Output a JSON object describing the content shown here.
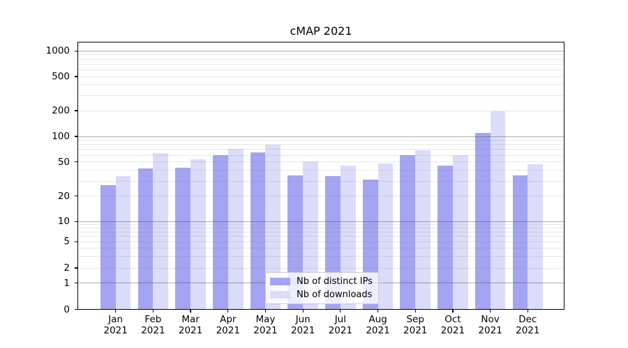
{
  "figure": {
    "background": "#ffffff"
  },
  "chart_data": {
    "type": "bar",
    "title": "cMAP 2021",
    "xlabel": "",
    "ylabel": "",
    "categories": [
      "Jan",
      "Feb",
      "Mar",
      "Apr",
      "May",
      "Jun",
      "Jul",
      "Aug",
      "Sep",
      "Oct",
      "Nov",
      "Dec"
    ],
    "x_year_line": "2021",
    "series": [
      {
        "name": "Nb of distinct IPs",
        "key": "distinct-ips",
        "color": "#a4a4f2",
        "values": [
          27,
          42,
          43,
          60,
          65,
          35,
          34,
          31,
          60,
          45,
          110,
          35
        ]
      },
      {
        "name": "Nb of downloads",
        "key": "downloads",
        "color": "#dbdbfa",
        "values": [
          34,
          64,
          54,
          71,
          80,
          51,
          45,
          48,
          69,
          60,
          195,
          47
        ]
      }
    ],
    "y_ticks": [
      0,
      1,
      2,
      5,
      10,
      20,
      50,
      100,
      200,
      500,
      1000
    ],
    "y_scale": "log above 1, linear 0-1 (symlog-like)",
    "ylim": [
      0,
      1270
    ],
    "grid": "horizontal; dark lines at powers of 10, light minor log subdivisions",
    "legend_position": "lower center",
    "colors": {
      "major_grid": "#b3b3b3",
      "minor_grid": "#e9e9e9",
      "axis": "#000000"
    }
  }
}
